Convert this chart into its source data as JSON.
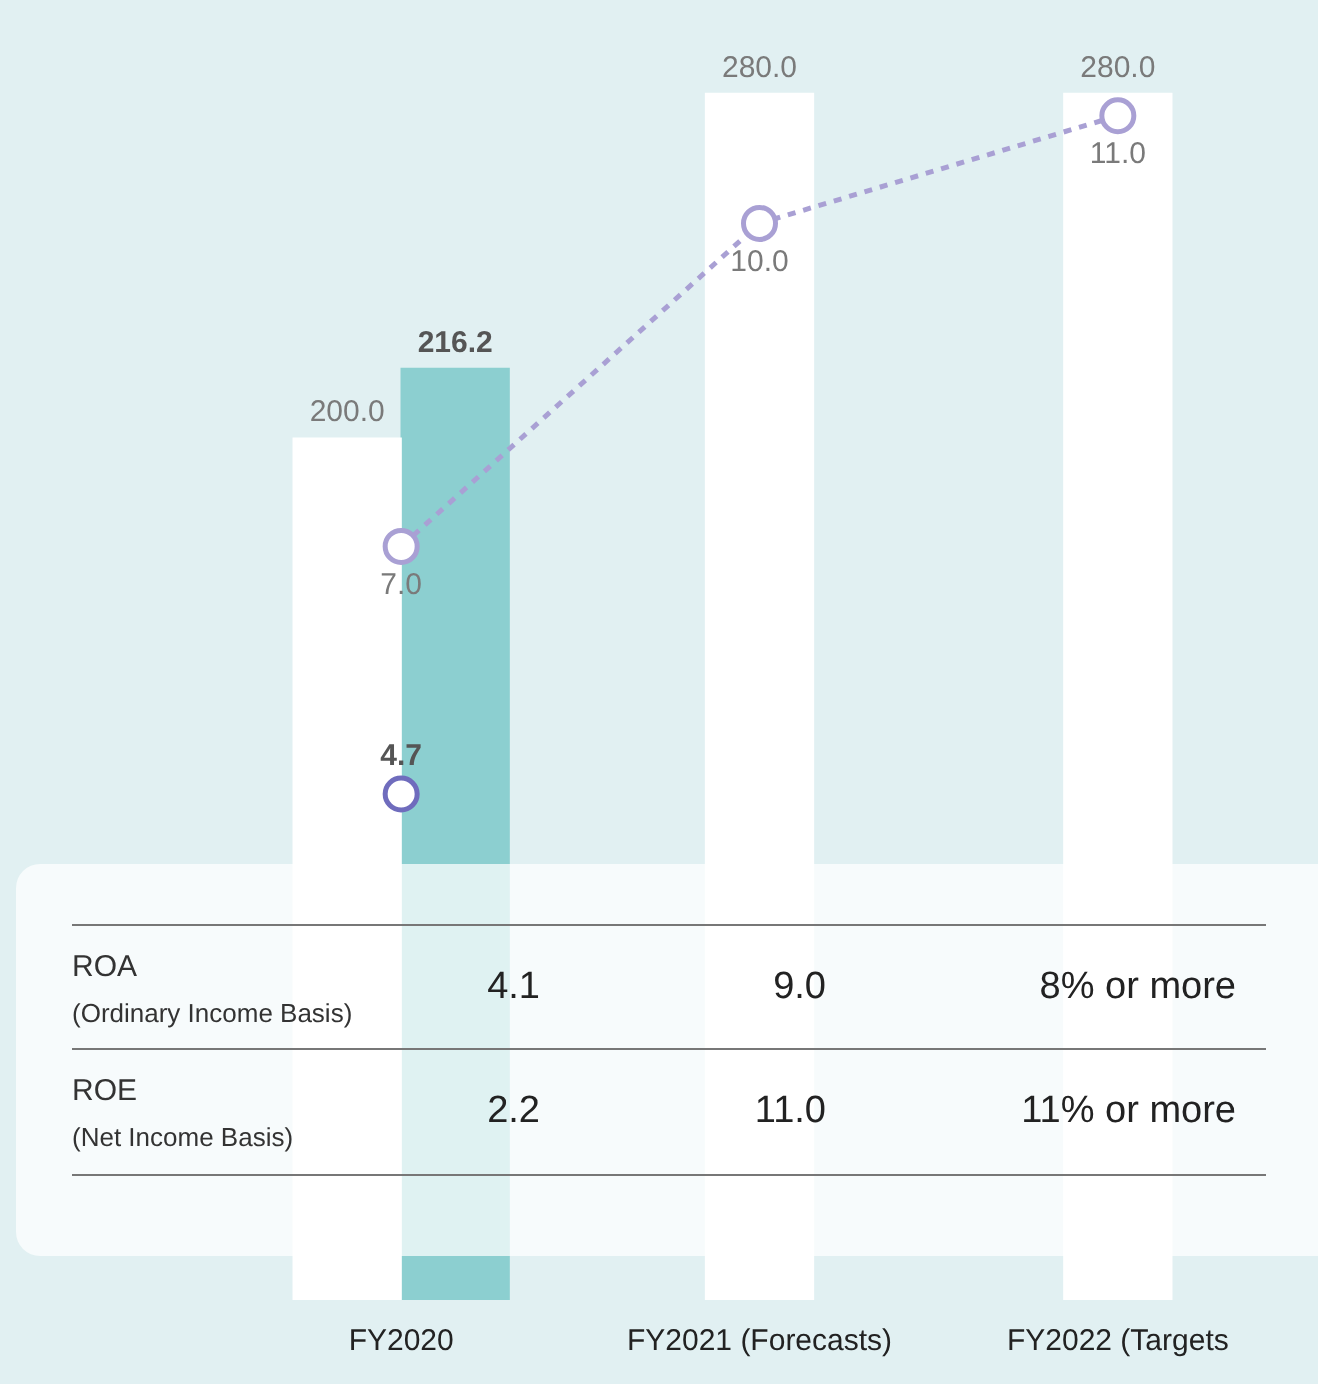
{
  "chart_data": {
    "type": "bar",
    "categories": [
      "FY2020",
      "FY2021 (Forecasts)",
      "FY2022 (Targets"
    ],
    "series": [
      {
        "type": "bar",
        "color": "#ffffff",
        "values": [
          200.0,
          280.0,
          280.0
        ],
        "value_labels": [
          "200.0",
          "280.0",
          "280.0"
        ]
      },
      {
        "type": "bar",
        "color": "#8ccfd0",
        "values": [
          216.2,
          null,
          null
        ],
        "value_labels": [
          "216.2",
          null,
          null
        ]
      },
      {
        "type": "line",
        "axis": "y2",
        "color": "#a9a0d4",
        "line_style": "dashed",
        "marker": "circle",
        "values": [
          7.0,
          10.0,
          11.0
        ],
        "value_labels": [
          "7.0",
          "10.0",
          "11.0"
        ]
      },
      {
        "type": "line",
        "axis": "y2",
        "color": "#6f6cbd",
        "line_style": "solid",
        "marker": "circle",
        "values": [
          4.7,
          null,
          null
        ],
        "value_labels": [
          "4.7",
          null,
          null
        ]
      }
    ],
    "annotations": [
      "ROA",
      "(Ordinary Income Basis)",
      "4.1",
      "9.0",
      "8% or more",
      "ROE",
      "(Net Income Basis)",
      "2.2",
      "11.0",
      "11% or more"
    ],
    "grid": false,
    "legend": false
  }
}
